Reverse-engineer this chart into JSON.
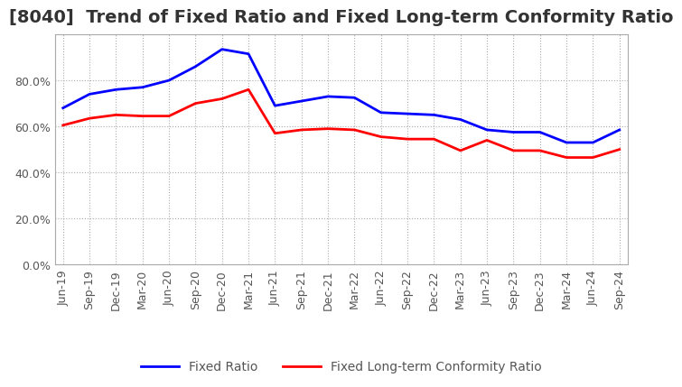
{
  "title": "[8040]  Trend of Fixed Ratio and Fixed Long-term Conformity Ratio",
  "x_labels": [
    "Jun-19",
    "Sep-19",
    "Dec-19",
    "Mar-20",
    "Jun-20",
    "Sep-20",
    "Dec-20",
    "Mar-21",
    "Jun-21",
    "Sep-21",
    "Dec-21",
    "Mar-22",
    "Jun-22",
    "Sep-22",
    "Dec-22",
    "Mar-23",
    "Jun-23",
    "Sep-23",
    "Dec-23",
    "Mar-24",
    "Jun-24",
    "Sep-24"
  ],
  "fixed_ratio": [
    68.0,
    74.0,
    76.0,
    77.0,
    80.0,
    86.0,
    93.5,
    91.5,
    69.0,
    71.0,
    73.0,
    72.5,
    66.0,
    65.5,
    65.0,
    63.0,
    58.5,
    57.5,
    57.5,
    53.0,
    53.0,
    58.5
  ],
  "fixed_lt_ratio": [
    60.5,
    63.5,
    65.0,
    64.5,
    64.5,
    70.0,
    72.0,
    76.0,
    57.0,
    58.5,
    59.0,
    58.5,
    55.5,
    54.5,
    54.5,
    49.5,
    54.0,
    49.5,
    49.5,
    46.5,
    46.5,
    50.0
  ],
  "fixed_ratio_color": "#0000ff",
  "fixed_lt_ratio_color": "#ff0000",
  "ylim": [
    0,
    100
  ],
  "yticks": [
    0,
    20,
    40,
    60,
    80
  ],
  "ytick_labels": [
    "0.0%",
    "20.0%",
    "40.0%",
    "60.0%",
    "80.0%"
  ],
  "grid_color": "#aaaaaa",
  "background_color": "#ffffff",
  "legend_fixed_ratio": "Fixed Ratio",
  "legend_fixed_lt_ratio": "Fixed Long-term Conformity Ratio",
  "title_fontsize": 14,
  "axis_label_fontsize": 9,
  "legend_fontsize": 10,
  "line_width": 2.0
}
